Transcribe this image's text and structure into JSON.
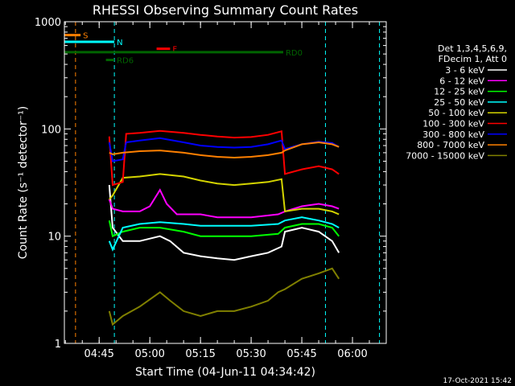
{
  "chart_data": {
    "type": "line",
    "title": "RHESSI Observing Summary Count Rates",
    "xlabel": "Start Time (04-Jun-11 04:34:42)",
    "ylabel": "Count Rate (s⁻¹ detector⁻¹)",
    "yscale": "log",
    "ylim": [
      1,
      1000
    ],
    "xlim": [
      "04:34:42",
      "06:10:00"
    ],
    "x_tick_labels": [
      "04:45",
      "05:00",
      "05:15",
      "05:30",
      "05:45",
      "06:00"
    ],
    "y_tick_labels": [
      "1",
      "10",
      "100",
      "1000"
    ],
    "legend_header": [
      "Det 1,3,4,5,6,9,",
      "FDecim 1, Att 0"
    ],
    "legend_position": "right",
    "footer_date": "17-Oct-2021 15:42",
    "colors": {
      "background": "#000000",
      "axes": "#ffffff",
      "markers_cyan": "#00ffff",
      "markers_orange": "#ff8000",
      "markers_green": "#006400",
      "markers_red": "#ff0000"
    },
    "series": [
      {
        "name": "3 - 6 keV",
        "color": "#ffffff",
        "points": [
          [
            "04:48:00",
            30
          ],
          [
            "04:49:00",
            12
          ],
          [
            "04:52:00",
            9
          ],
          [
            "04:57:00",
            9
          ],
          [
            "05:03:00",
            10
          ],
          [
            "05:06:00",
            9
          ],
          [
            "05:10:00",
            7
          ],
          [
            "05:15:00",
            6.5
          ],
          [
            "05:20:00",
            6.2
          ],
          [
            "05:25:00",
            6
          ],
          [
            "05:30:00",
            6.5
          ],
          [
            "05:35:00",
            7
          ],
          [
            "05:39:00",
            8
          ],
          [
            "05:40:00",
            11
          ],
          [
            "05:45:00",
            12
          ],
          [
            "05:50:00",
            11
          ],
          [
            "05:54:00",
            9
          ],
          [
            "05:56:00",
            7
          ]
        ]
      },
      {
        "name": "6 - 12 keV",
        "color": "#ff00ff",
        "points": [
          [
            "04:48:00",
            22
          ],
          [
            "04:49:00",
            18
          ],
          [
            "04:52:00",
            17
          ],
          [
            "04:57:00",
            17
          ],
          [
            "05:00:00",
            19
          ],
          [
            "05:03:00",
            27
          ],
          [
            "05:05:00",
            20
          ],
          [
            "05:08:00",
            16
          ],
          [
            "05:15:00",
            16
          ],
          [
            "05:20:00",
            15
          ],
          [
            "05:30:00",
            15
          ],
          [
            "05:38:00",
            16
          ],
          [
            "05:40:00",
            17
          ],
          [
            "05:45:00",
            19
          ],
          [
            "05:50:00",
            20
          ],
          [
            "05:54:00",
            19
          ],
          [
            "05:56:00",
            18
          ]
        ]
      },
      {
        "name": "12 - 25 keV",
        "color": "#00ff00",
        "points": [
          [
            "04:48:00",
            14
          ],
          [
            "04:49:00",
            10
          ],
          [
            "04:52:00",
            11
          ],
          [
            "04:57:00",
            12
          ],
          [
            "05:03:00",
            12
          ],
          [
            "05:10:00",
            11
          ],
          [
            "05:15:00",
            10
          ],
          [
            "05:20:00",
            10
          ],
          [
            "05:30:00",
            10
          ],
          [
            "05:38:00",
            10.5
          ],
          [
            "05:40:00",
            12
          ],
          [
            "05:45:00",
            13
          ],
          [
            "05:50:00",
            13
          ],
          [
            "05:54:00",
            12
          ],
          [
            "05:56:00",
            10
          ]
        ]
      },
      {
        "name": "25 - 50 keV",
        "color": "#00ffff",
        "points": [
          [
            "04:48:00",
            9
          ],
          [
            "04:49:00",
            7.5
          ],
          [
            "04:52:00",
            12
          ],
          [
            "04:57:00",
            13
          ],
          [
            "05:03:00",
            13.5
          ],
          [
            "05:10:00",
            13
          ],
          [
            "05:15:00",
            12.5
          ],
          [
            "05:20:00",
            12.5
          ],
          [
            "05:30:00",
            12.5
          ],
          [
            "05:38:00",
            13
          ],
          [
            "05:40:00",
            14
          ],
          [
            "05:45:00",
            15
          ],
          [
            "05:50:00",
            14
          ],
          [
            "05:54:00",
            13
          ],
          [
            "05:56:00",
            12
          ]
        ]
      },
      {
        "name": "50 - 100 keV",
        "color": "#d4d400",
        "points": [
          [
            "04:48:00",
            22
          ],
          [
            "04:49:00",
            24
          ],
          [
            "04:52:00",
            35
          ],
          [
            "04:57:00",
            36
          ],
          [
            "05:03:00",
            38
          ],
          [
            "05:10:00",
            36
          ],
          [
            "05:15:00",
            33
          ],
          [
            "05:20:00",
            31
          ],
          [
            "05:25:00",
            30
          ],
          [
            "05:30:00",
            31
          ],
          [
            "05:35:00",
            32
          ],
          [
            "05:39:00",
            34
          ],
          [
            "05:40:00",
            17
          ],
          [
            "05:45:00",
            18
          ],
          [
            "05:50:00",
            18
          ],
          [
            "05:54:00",
            17
          ],
          [
            "05:56:00",
            16
          ]
        ]
      },
      {
        "name": "100 - 300 keV",
        "color": "#ff0000",
        "points": [
          [
            "04:48:00",
            85
          ],
          [
            "04:49:00",
            30
          ],
          [
            "04:52:00",
            32
          ],
          [
            "04:53:00",
            90
          ],
          [
            "04:57:00",
            92
          ],
          [
            "05:03:00",
            96
          ],
          [
            "05:10:00",
            92
          ],
          [
            "05:15:00",
            88
          ],
          [
            "05:20:00",
            85
          ],
          [
            "05:25:00",
            83
          ],
          [
            "05:30:00",
            84
          ],
          [
            "05:35:00",
            88
          ],
          [
            "05:39:00",
            95
          ],
          [
            "05:40:00",
            38
          ],
          [
            "05:45:00",
            42
          ],
          [
            "05:50:00",
            45
          ],
          [
            "05:54:00",
            42
          ],
          [
            "05:56:00",
            38
          ]
        ]
      },
      {
        "name": "300 - 800 keV",
        "color": "#0000ff",
        "points": [
          [
            "04:48:00",
            75
          ],
          [
            "04:49:00",
            50
          ],
          [
            "04:52:00",
            52
          ],
          [
            "04:53:00",
            75
          ],
          [
            "04:57:00",
            78
          ],
          [
            "05:03:00",
            82
          ],
          [
            "05:10:00",
            75
          ],
          [
            "05:15:00",
            70
          ],
          [
            "05:20:00",
            68
          ],
          [
            "05:25:00",
            67
          ],
          [
            "05:30:00",
            68
          ],
          [
            "05:35:00",
            72
          ],
          [
            "05:39:00",
            78
          ],
          [
            "05:40:00",
            65
          ],
          [
            "05:45:00",
            72
          ],
          [
            "05:50:00",
            76
          ],
          [
            "05:54:00",
            74
          ],
          [
            "05:56:00",
            68
          ]
        ]
      },
      {
        "name": "800 - 7000 keV",
        "color": "#ff8000",
        "points": [
          [
            "04:48:00",
            60
          ],
          [
            "04:49:00",
            58
          ],
          [
            "04:52:00",
            60
          ],
          [
            "04:57:00",
            62
          ],
          [
            "05:03:00",
            63
          ],
          [
            "05:10:00",
            60
          ],
          [
            "05:15:00",
            57
          ],
          [
            "05:20:00",
            55
          ],
          [
            "05:25:00",
            54
          ],
          [
            "05:30:00",
            55
          ],
          [
            "05:35:00",
            57
          ],
          [
            "05:39:00",
            60
          ],
          [
            "05:40:00",
            63
          ],
          [
            "05:45:00",
            72
          ],
          [
            "05:50:00",
            75
          ],
          [
            "05:54:00",
            72
          ],
          [
            "05:56:00",
            68
          ]
        ]
      },
      {
        "name": "7000 - 15000 keV",
        "color": "#808000",
        "points": [
          [
            "04:48:00",
            2
          ],
          [
            "04:49:00",
            1.5
          ],
          [
            "04:52:00",
            1.8
          ],
          [
            "04:57:00",
            2.2
          ],
          [
            "05:03:00",
            3
          ],
          [
            "05:06:00",
            2.5
          ],
          [
            "05:10:00",
            2
          ],
          [
            "05:15:00",
            1.8
          ],
          [
            "05:20:00",
            2
          ],
          [
            "05:25:00",
            2
          ],
          [
            "05:30:00",
            2.2
          ],
          [
            "05:35:00",
            2.5
          ],
          [
            "05:38:00",
            3
          ],
          [
            "05:40:00",
            3.2
          ],
          [
            "05:45:00",
            4
          ],
          [
            "05:50:00",
            4.5
          ],
          [
            "05:54:00",
            5
          ],
          [
            "05:56:00",
            4
          ]
        ]
      }
    ],
    "annotations": [
      {
        "text": "S",
        "color": "#ff8000",
        "start": "04:34:42",
        "end": "04:39:30",
        "level": 750
      },
      {
        "text": "N",
        "color": "#00ffff",
        "start": "04:34:42",
        "end": "04:49:30",
        "level": 650
      },
      {
        "text": "F",
        "color": "#ff0000",
        "start": "05:02:00",
        "end": "05:06:00",
        "level": 560
      },
      {
        "text": "RD0",
        "color": "#006400",
        "start": "04:34:42",
        "end": "05:39:30",
        "level": 520
      },
      {
        "text": "RD6",
        "color": "#006400",
        "start": "04:47:00",
        "end": "04:49:30",
        "level": 440
      }
    ],
    "vertical_markers": [
      {
        "time": "04:38:00",
        "color": "#ff8000"
      },
      {
        "time": "04:49:30",
        "color": "#00ffff"
      },
      {
        "time": "05:52:00",
        "color": "#00ffff"
      },
      {
        "time": "06:08:00",
        "color": "#00ffff"
      }
    ]
  }
}
